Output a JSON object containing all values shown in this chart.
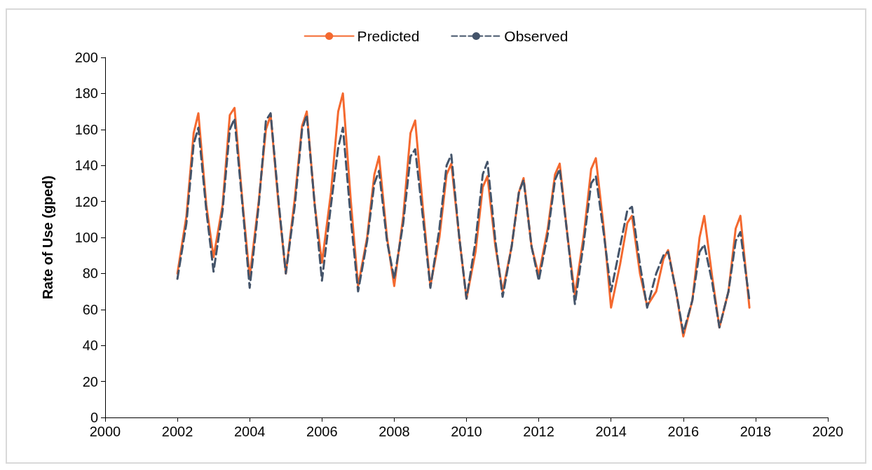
{
  "chart_data": {
    "type": "line",
    "ylabel": "Rate of Use (gped)",
    "x": [
      2002,
      2002.25,
      2002.45,
      2002.58,
      2002.8,
      2003,
      2003.25,
      2003.45,
      2003.58,
      2003.8,
      2004,
      2004.25,
      2004.45,
      2004.58,
      2004.8,
      2005,
      2005.25,
      2005.45,
      2005.58,
      2005.8,
      2006,
      2006.25,
      2006.45,
      2006.58,
      2006.8,
      2007,
      2007.25,
      2007.45,
      2007.58,
      2007.8,
      2008,
      2008.25,
      2008.45,
      2008.58,
      2008.8,
      2009,
      2009.25,
      2009.45,
      2009.58,
      2009.8,
      2010,
      2010.25,
      2010.45,
      2010.58,
      2010.8,
      2011,
      2011.25,
      2011.45,
      2011.58,
      2011.8,
      2012,
      2012.25,
      2012.45,
      2012.58,
      2012.8,
      2013,
      2013.25,
      2013.45,
      2013.58,
      2013.8,
      2014,
      2014.25,
      2014.45,
      2014.58,
      2014.8,
      2015,
      2015.25,
      2015.45,
      2015.58,
      2015.8,
      2016,
      2016.25,
      2016.45,
      2016.58,
      2016.8,
      2017,
      2017.25,
      2017.45,
      2017.58,
      2017.83
    ],
    "series": [
      {
        "name": "Predicted",
        "color": "#f4692f",
        "line_style": "solid",
        "values": [
          80,
          112,
          158,
          169,
          118,
          89,
          118,
          168,
          172,
          120,
          78,
          120,
          160,
          168,
          118,
          80,
          122,
          162,
          170,
          118,
          86,
          125,
          170,
          180,
          120,
          73,
          100,
          135,
          145,
          100,
          73,
          112,
          158,
          165,
          115,
          73,
          100,
          135,
          141,
          100,
          66,
          92,
          128,
          134,
          95,
          70,
          95,
          125,
          133,
          95,
          79,
          105,
          135,
          141,
          100,
          68,
          102,
          138,
          144,
          105,
          61,
          85,
          108,
          112,
          80,
          62,
          70,
          88,
          93,
          70,
          45,
          65,
          100,
          112,
          78,
          50,
          70,
          105,
          112,
          61
        ]
      },
      {
        "name": "Observed",
        "color": "#44546a",
        "line_style": "dashed",
        "values": [
          77,
          108,
          152,
          161,
          115,
          81,
          115,
          160,
          166,
          118,
          72,
          118,
          165,
          169,
          120,
          80,
          118,
          160,
          168,
          118,
          76,
          118,
          150,
          161,
          110,
          70,
          98,
          130,
          137,
          98,
          77,
          108,
          145,
          149,
          110,
          72,
          105,
          140,
          146,
          100,
          66,
          98,
          135,
          142,
          98,
          67,
          95,
          125,
          132,
          95,
          76,
          102,
          132,
          138,
          100,
          63,
          98,
          130,
          134,
          102,
          70,
          95,
          115,
          117,
          85,
          61,
          80,
          90,
          92,
          70,
          47,
          65,
          92,
          96,
          75,
          50,
          70,
          98,
          103,
          65
        ]
      }
    ],
    "xlim": [
      2000,
      2020
    ],
    "xticks": [
      2000,
      2002,
      2004,
      2006,
      2008,
      2010,
      2012,
      2014,
      2016,
      2018,
      2020
    ],
    "ylim": [
      0,
      200
    ],
    "yticks": [
      0,
      20,
      40,
      60,
      80,
      100,
      120,
      140,
      160,
      180,
      200
    ],
    "grid": false,
    "legend": "top",
    "marker": "none"
  }
}
